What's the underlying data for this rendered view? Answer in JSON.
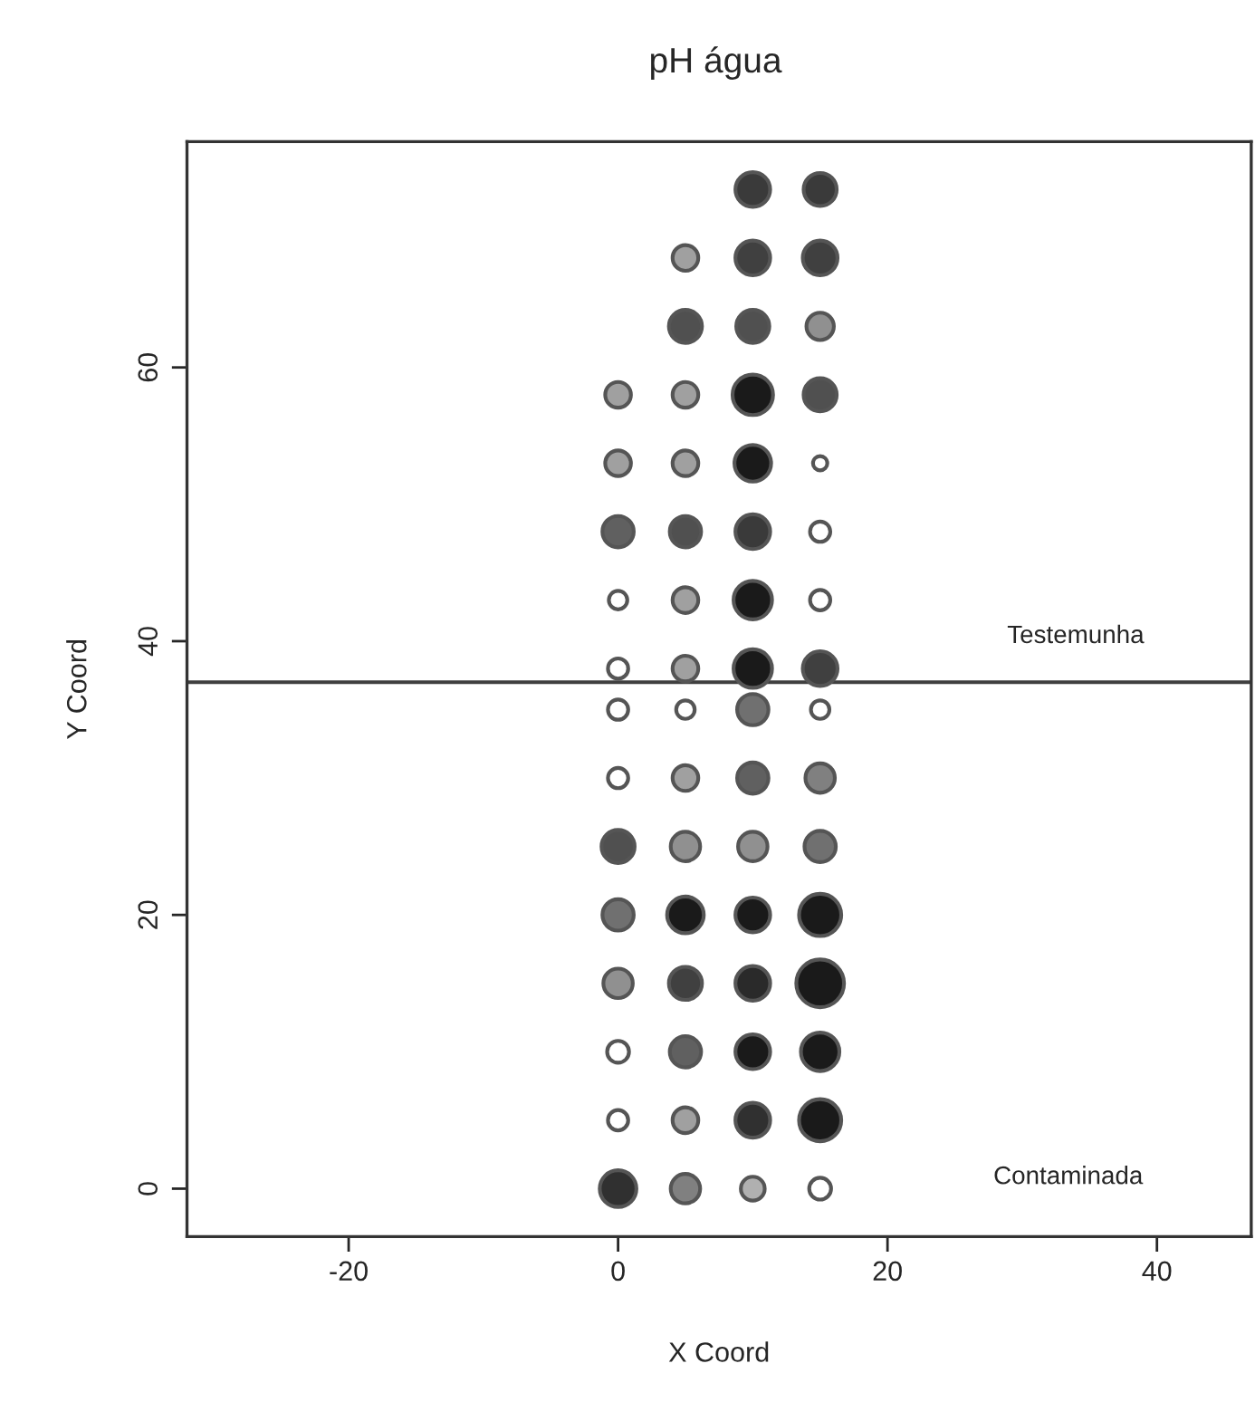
{
  "chart_data": {
    "type": "bubble",
    "title": "pH água",
    "xlabel": "X Coord",
    "ylabel": "Y Coord",
    "xlim": [
      -32,
      47
    ],
    "ylim": [
      -3.5,
      76.5
    ],
    "xticks": [
      -20,
      0,
      20,
      40
    ],
    "yticks": [
      0,
      20,
      40,
      60
    ],
    "grid": false,
    "legend": false,
    "marker": "circle",
    "ref_lines": [
      {
        "axis": "y",
        "value": 37,
        "color": "#404040",
        "line_style": "solid"
      }
    ],
    "annotations": [
      "Testemunha",
      "Contaminada"
    ],
    "series": [
      {
        "x": [
          0,
          5,
          10,
          15,
          0,
          5,
          10,
          15,
          0,
          5,
          10,
          15,
          0,
          5,
          10,
          15,
          0,
          5,
          10,
          15,
          0,
          5,
          10,
          15,
          0,
          5,
          10,
          15,
          0,
          5,
          10,
          15,
          0,
          5,
          10,
          15,
          0,
          5,
          10,
          15,
          0,
          5,
          10,
          15,
          0,
          5,
          10,
          15,
          0,
          5,
          10,
          15,
          5,
          10,
          15,
          5,
          10,
          15,
          10,
          15
        ],
        "values": [
          0,
          0,
          0,
          0,
          5,
          5,
          5,
          5,
          10,
          10,
          10,
          10,
          15,
          15,
          15,
          15,
          20,
          20,
          20,
          20,
          25,
          25,
          25,
          25,
          30,
          30,
          30,
          30,
          35,
          35,
          35,
          35,
          38,
          38,
          38,
          38,
          43,
          43,
          43,
          43,
          48,
          48,
          48,
          48,
          53,
          53,
          53,
          53,
          58,
          58,
          58,
          58,
          63,
          63,
          63,
          68,
          68,
          68,
          73,
          73
        ],
        "sizes": [
          0.59,
          0.38,
          0.25,
          0.21,
          0.18,
          0.29,
          0.53,
          0.78,
          0.21,
          0.43,
          0.53,
          0.65,
          0.38,
          0.48,
          0.53,
          1,
          0.43,
          0.59,
          0.53,
          0.78,
          0.48,
          0.38,
          0.38,
          0.43,
          0.18,
          0.29,
          0.43,
          0.38,
          0.18,
          0.15,
          0.43,
          0.15,
          0.18,
          0.29,
          0.65,
          0.53,
          0.15,
          0.29,
          0.65,
          0.18,
          0.43,
          0.43,
          0.53,
          0.18,
          0.29,
          0.29,
          0.59,
          0.09,
          0.29,
          0.29,
          0.72,
          0.48,
          0.48,
          0.48,
          0.33,
          0.29,
          0.53,
          0.53,
          0.53,
          0.48
        ],
        "colors": [
          "#303030",
          "#808080",
          "#b0b0b0",
          "#ffffff",
          "#ffffff",
          "#a0a0a0",
          "#303030",
          "#1a1a1a",
          "#ffffff",
          "#606060",
          "#1a1a1a",
          "#1a1a1a",
          "#909090",
          "#404040",
          "#2a2a2a",
          "#1a1a1a",
          "#707070",
          "#1a1a1a",
          "#1a1a1a",
          "#1a1a1a",
          "#505050",
          "#909090",
          "#909090",
          "#707070",
          "#ffffff",
          "#a0a0a0",
          "#606060",
          "#808080",
          "#ffffff",
          "#ffffff",
          "#707070",
          "#ffffff",
          "#ffffff",
          "#a0a0a0",
          "#1a1a1a",
          "#404040",
          "#ffffff",
          "#a0a0a0",
          "#1a1a1a",
          "#ffffff",
          "#606060",
          "#505050",
          "#3a3a3a",
          "#ffffff",
          "#a0a0a0",
          "#a0a0a0",
          "#1a1a1a",
          "#ffffff",
          "#a0a0a0",
          "#a0a0a0",
          "#1a1a1a",
          "#505050",
          "#505050",
          "#505050",
          "#909090",
          "#a0a0a0",
          "#404040",
          "#404040",
          "#3a3a3a",
          "#3a3a3a"
        ]
      }
    ]
  }
}
